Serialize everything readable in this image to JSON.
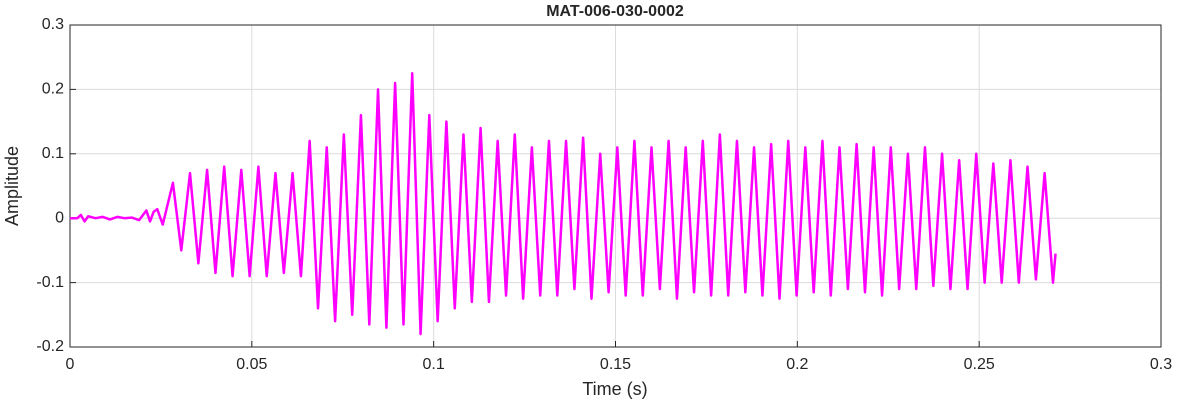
{
  "chart_data": {
    "type": "line",
    "title": "MAT-006-030-0002",
    "x_label": "Time (s)",
    "y_label": "Amplitude",
    "color": "#ff00ff",
    "grid": true,
    "xlim": [
      0,
      0.3
    ],
    "xticks": [
      0,
      0.05,
      0.1,
      0.15,
      0.2,
      0.25,
      0.3
    ],
    "ylim": [
      -0.2,
      0.3
    ],
    "yticks": [
      -0.2,
      -0.1,
      0,
      0.1,
      0.2,
      0.3
    ],
    "x": [
      0,
      0.002,
      0.003,
      0.004,
      0.005,
      0.007,
      0.009,
      0.011,
      0.013,
      0.015,
      0.017,
      0.019,
      0.021,
      0.022,
      0.023,
      0.024,
      0.0255,
      0.0283,
      0.0306,
      0.033,
      0.0353,
      0.0377,
      0.04,
      0.0424,
      0.0447,
      0.0471,
      0.0494,
      0.0518,
      0.0541,
      0.0565,
      0.0588,
      0.0612,
      0.0635,
      0.0659,
      0.0682,
      0.0706,
      0.0729,
      0.0753,
      0.0776,
      0.08,
      0.0823,
      0.0847,
      0.087,
      0.0894,
      0.0917,
      0.0941,
      0.0964,
      0.0988,
      0.1011,
      0.1035,
      0.1058,
      0.1082,
      0.1105,
      0.1129,
      0.1152,
      0.1176,
      0.1199,
      0.1223,
      0.1246,
      0.127,
      0.1293,
      0.1317,
      0.134,
      0.1364,
      0.1387,
      0.1411,
      0.1434,
      0.1458,
      0.1481,
      0.1505,
      0.1528,
      0.1552,
      0.1575,
      0.1599,
      0.1622,
      0.1646,
      0.1669,
      0.1693,
      0.1716,
      0.174,
      0.1763,
      0.1787,
      0.181,
      0.1834,
      0.1857,
      0.1881,
      0.1904,
      0.1928,
      0.1951,
      0.1975,
      0.1998,
      0.2022,
      0.2045,
      0.2069,
      0.2092,
      0.2116,
      0.2139,
      0.2163,
      0.2186,
      0.221,
      0.2233,
      0.2257,
      0.228,
      0.2304,
      0.2327,
      0.2351,
      0.2374,
      0.2398,
      0.2421,
      0.2445,
      0.2468,
      0.2492,
      0.2515,
      0.2539,
      0.2562,
      0.2586,
      0.2609,
      0.2633,
      0.2656,
      0.268,
      0.2703,
      0.271
    ],
    "values": [
      0,
      0,
      0.005,
      -0.005,
      0.003,
      0,
      0.002,
      -0.002,
      0.002,
      0,
      0.001,
      -0.003,
      0.012,
      -0.005,
      0.01,
      0.014,
      -0.01,
      0.055,
      -0.05,
      0.07,
      -0.07,
      0.075,
      -0.085,
      0.08,
      -0.09,
      0.075,
      -0.09,
      0.08,
      -0.09,
      0.07,
      -0.085,
      0.07,
      -0.09,
      0.12,
      -0.14,
      0.11,
      -0.16,
      0.13,
      -0.15,
      0.16,
      -0.165,
      0.2,
      -0.17,
      0.21,
      -0.165,
      0.225,
      -0.18,
      0.16,
      -0.16,
      0.15,
      -0.14,
      0.13,
      -0.13,
      0.14,
      -0.13,
      0.12,
      -0.12,
      0.13,
      -0.125,
      0.11,
      -0.12,
      0.12,
      -0.12,
      0.12,
      -0.11,
      0.125,
      -0.125,
      0.1,
      -0.115,
      0.11,
      -0.12,
      0.12,
      -0.12,
      0.11,
      -0.11,
      0.12,
      -0.125,
      0.11,
      -0.115,
      0.12,
      -0.12,
      0.13,
      -0.12,
      0.12,
      -0.115,
      0.11,
      -0.12,
      0.115,
      -0.125,
      0.12,
      -0.12,
      0.11,
      -0.115,
      0.12,
      -0.12,
      0.11,
      -0.11,
      0.115,
      -0.115,
      0.11,
      -0.12,
      0.11,
      -0.11,
      0.1,
      -0.11,
      0.11,
      -0.105,
      0.1,
      -0.11,
      0.09,
      -0.11,
      0.1,
      -0.1,
      0.085,
      -0.1,
      0.09,
      -0.1,
      0.08,
      -0.095,
      0.07,
      -0.1,
      -0.055
    ]
  }
}
